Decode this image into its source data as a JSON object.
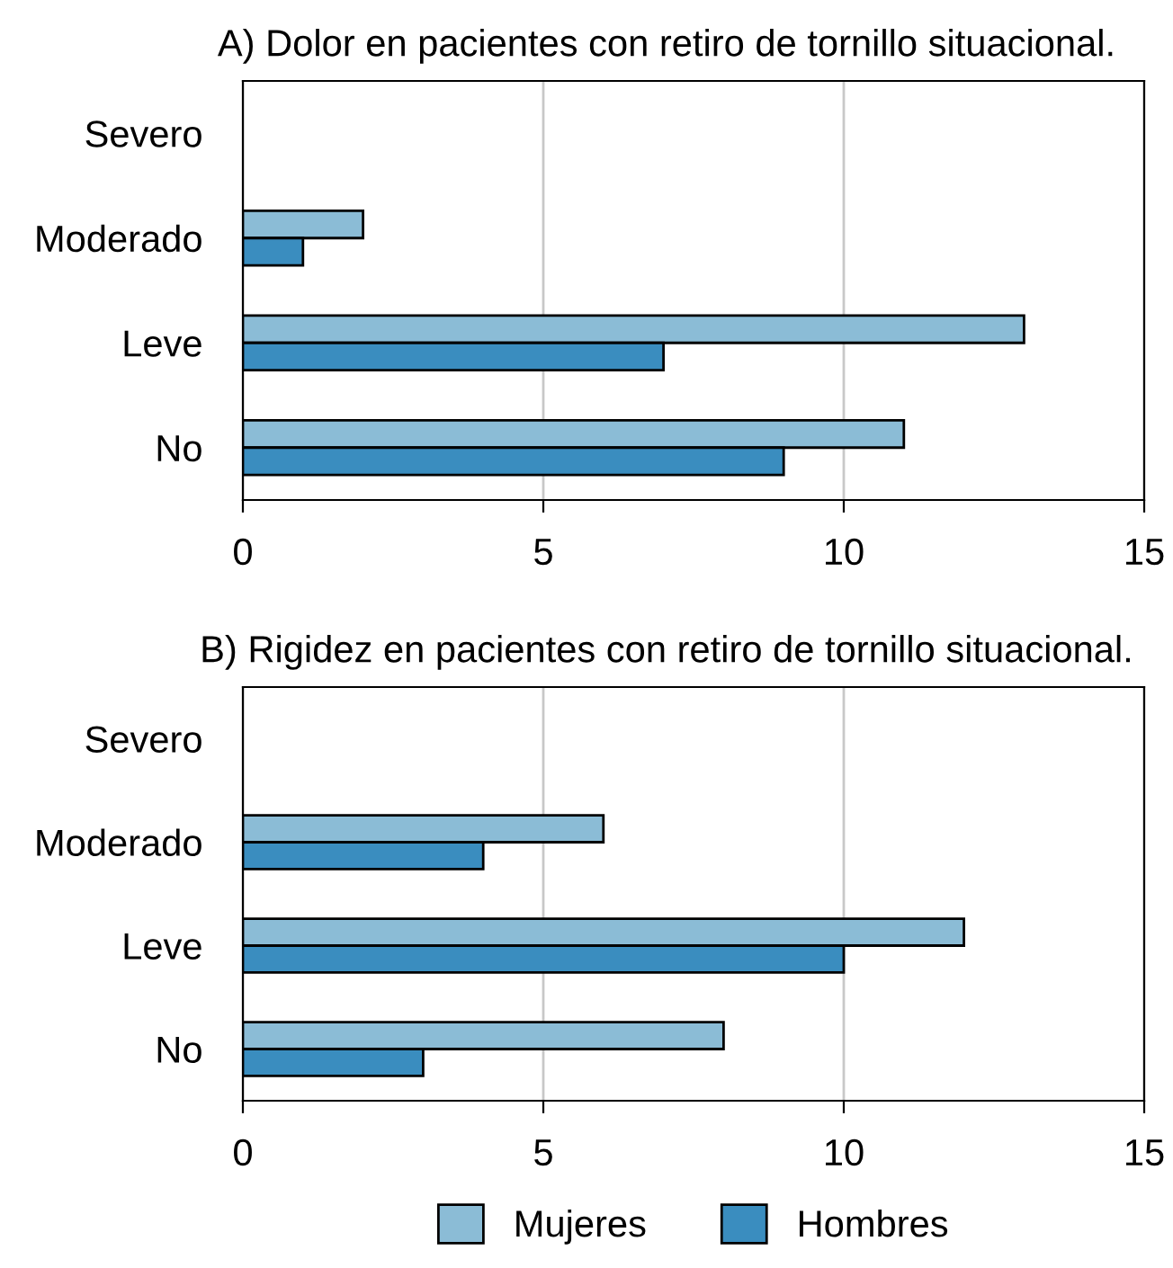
{
  "chart_data": [
    {
      "type": "bar",
      "orientation": "horizontal",
      "title": "A) Dolor en pacientes con retiro de tornillo situacional.",
      "categories": [
        "Severo",
        "Moderado",
        "Leve",
        "No"
      ],
      "series": [
        {
          "color": "#8bbcd6",
          "values": [
            null,
            2,
            13,
            11
          ]
        },
        {
          "color": "#3a8dbf",
          "values": [
            null,
            1,
            7,
            9
          ]
        }
      ],
      "xlim": [
        0,
        15
      ],
      "xticks": [
        0,
        5,
        10,
        15
      ],
      "grid": "x",
      "legend": false
    },
    {
      "type": "bar",
      "orientation": "horizontal",
      "title": "B) Rigidez en pacientes con retiro de tornillo situacional.",
      "categories": [
        "Severo",
        "Moderado",
        "Leve",
        "No"
      ],
      "series": [
        {
          "name": "Mujeres",
          "color": "#8bbcd6",
          "values": [
            null,
            6,
            12,
            8
          ]
        },
        {
          "name": "Hombres",
          "color": "#3a8dbf",
          "values": [
            null,
            4,
            10,
            3
          ]
        }
      ],
      "xlim": [
        0,
        15
      ],
      "xticks": [
        0,
        5,
        10,
        15
      ],
      "grid": "x",
      "legend": "bottom"
    }
  ]
}
